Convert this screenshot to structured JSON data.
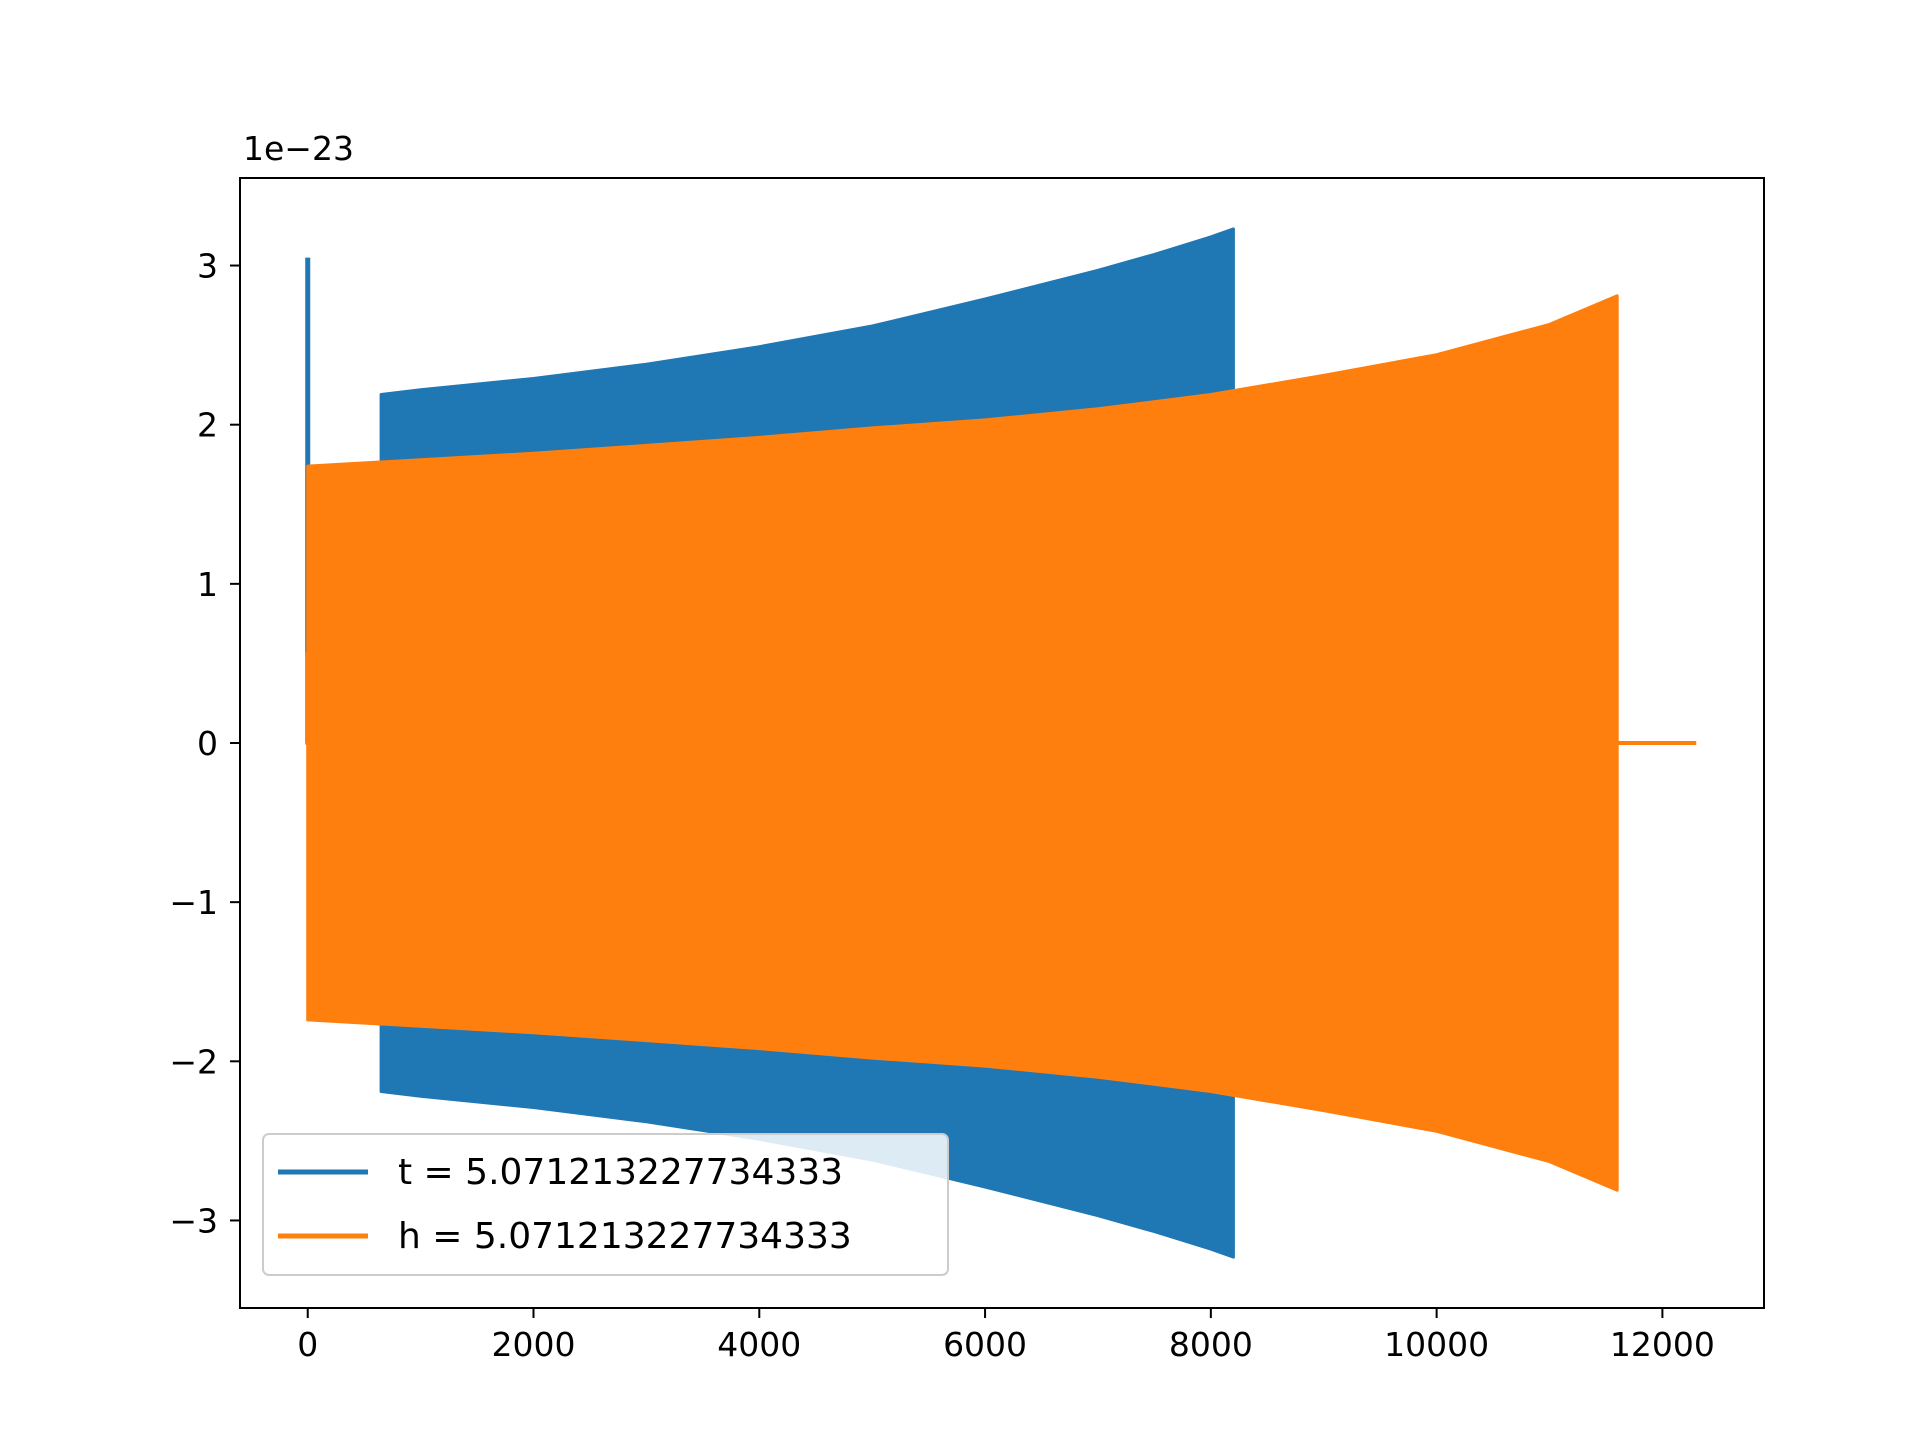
{
  "chart_data": {
    "type": "line",
    "title": "",
    "xlabel": "",
    "ylabel": "",
    "y_offset_label": "1e−23",
    "xlim": [
      -600,
      12900
    ],
    "ylim": [
      -3.55,
      3.55
    ],
    "x_ticks": [
      {
        "value": 0,
        "label": "0"
      },
      {
        "value": 2000,
        "label": "2000"
      },
      {
        "value": 4000,
        "label": "4000"
      },
      {
        "value": 6000,
        "label": "6000"
      },
      {
        "value": 8000,
        "label": "8000"
      },
      {
        "value": 10000,
        "label": "10000"
      },
      {
        "value": 12000,
        "label": "12000"
      }
    ],
    "y_ticks": [
      {
        "value": 3,
        "label": "3"
      },
      {
        "value": 2,
        "label": "2"
      },
      {
        "value": 1,
        "label": "1"
      },
      {
        "value": 0,
        "label": "0"
      },
      {
        "value": -1,
        "label": "−1"
      },
      {
        "value": -2,
        "label": "−2"
      },
      {
        "value": -3,
        "label": "−3"
      }
    ],
    "grid": false,
    "legend_position": "lower-left",
    "series": [
      {
        "name": "t = 5.071213227734333",
        "color": "#1f77b4",
        "spike": {
          "x": 0,
          "y": [
            0,
            3.05
          ]
        },
        "envelope_x": [
          650,
          1000,
          2000,
          3000,
          4000,
          5000,
          6000,
          7000,
          7500,
          8000,
          8200
        ],
        "envelope_y": [
          2.19,
          2.22,
          2.29,
          2.38,
          2.49,
          2.62,
          2.79,
          2.97,
          3.07,
          3.18,
          3.23
        ]
      },
      {
        "name": "h = 5.071213227734333",
        "color": "#ff7f0e",
        "start_segment": {
          "x": 0,
          "y": [
            -0.01,
            0.57
          ]
        },
        "envelope_x": [
          0,
          1000,
          2000,
          3000,
          4000,
          5000,
          6000,
          7000,
          8000,
          9000,
          10000,
          11000,
          11600
        ],
        "envelope_y": [
          1.74,
          1.78,
          1.82,
          1.87,
          1.92,
          1.98,
          2.03,
          2.1,
          2.19,
          2.31,
          2.44,
          2.63,
          2.81
        ],
        "tail": {
          "x": [
            11600,
            12300
          ],
          "y": 0
        }
      }
    ]
  }
}
